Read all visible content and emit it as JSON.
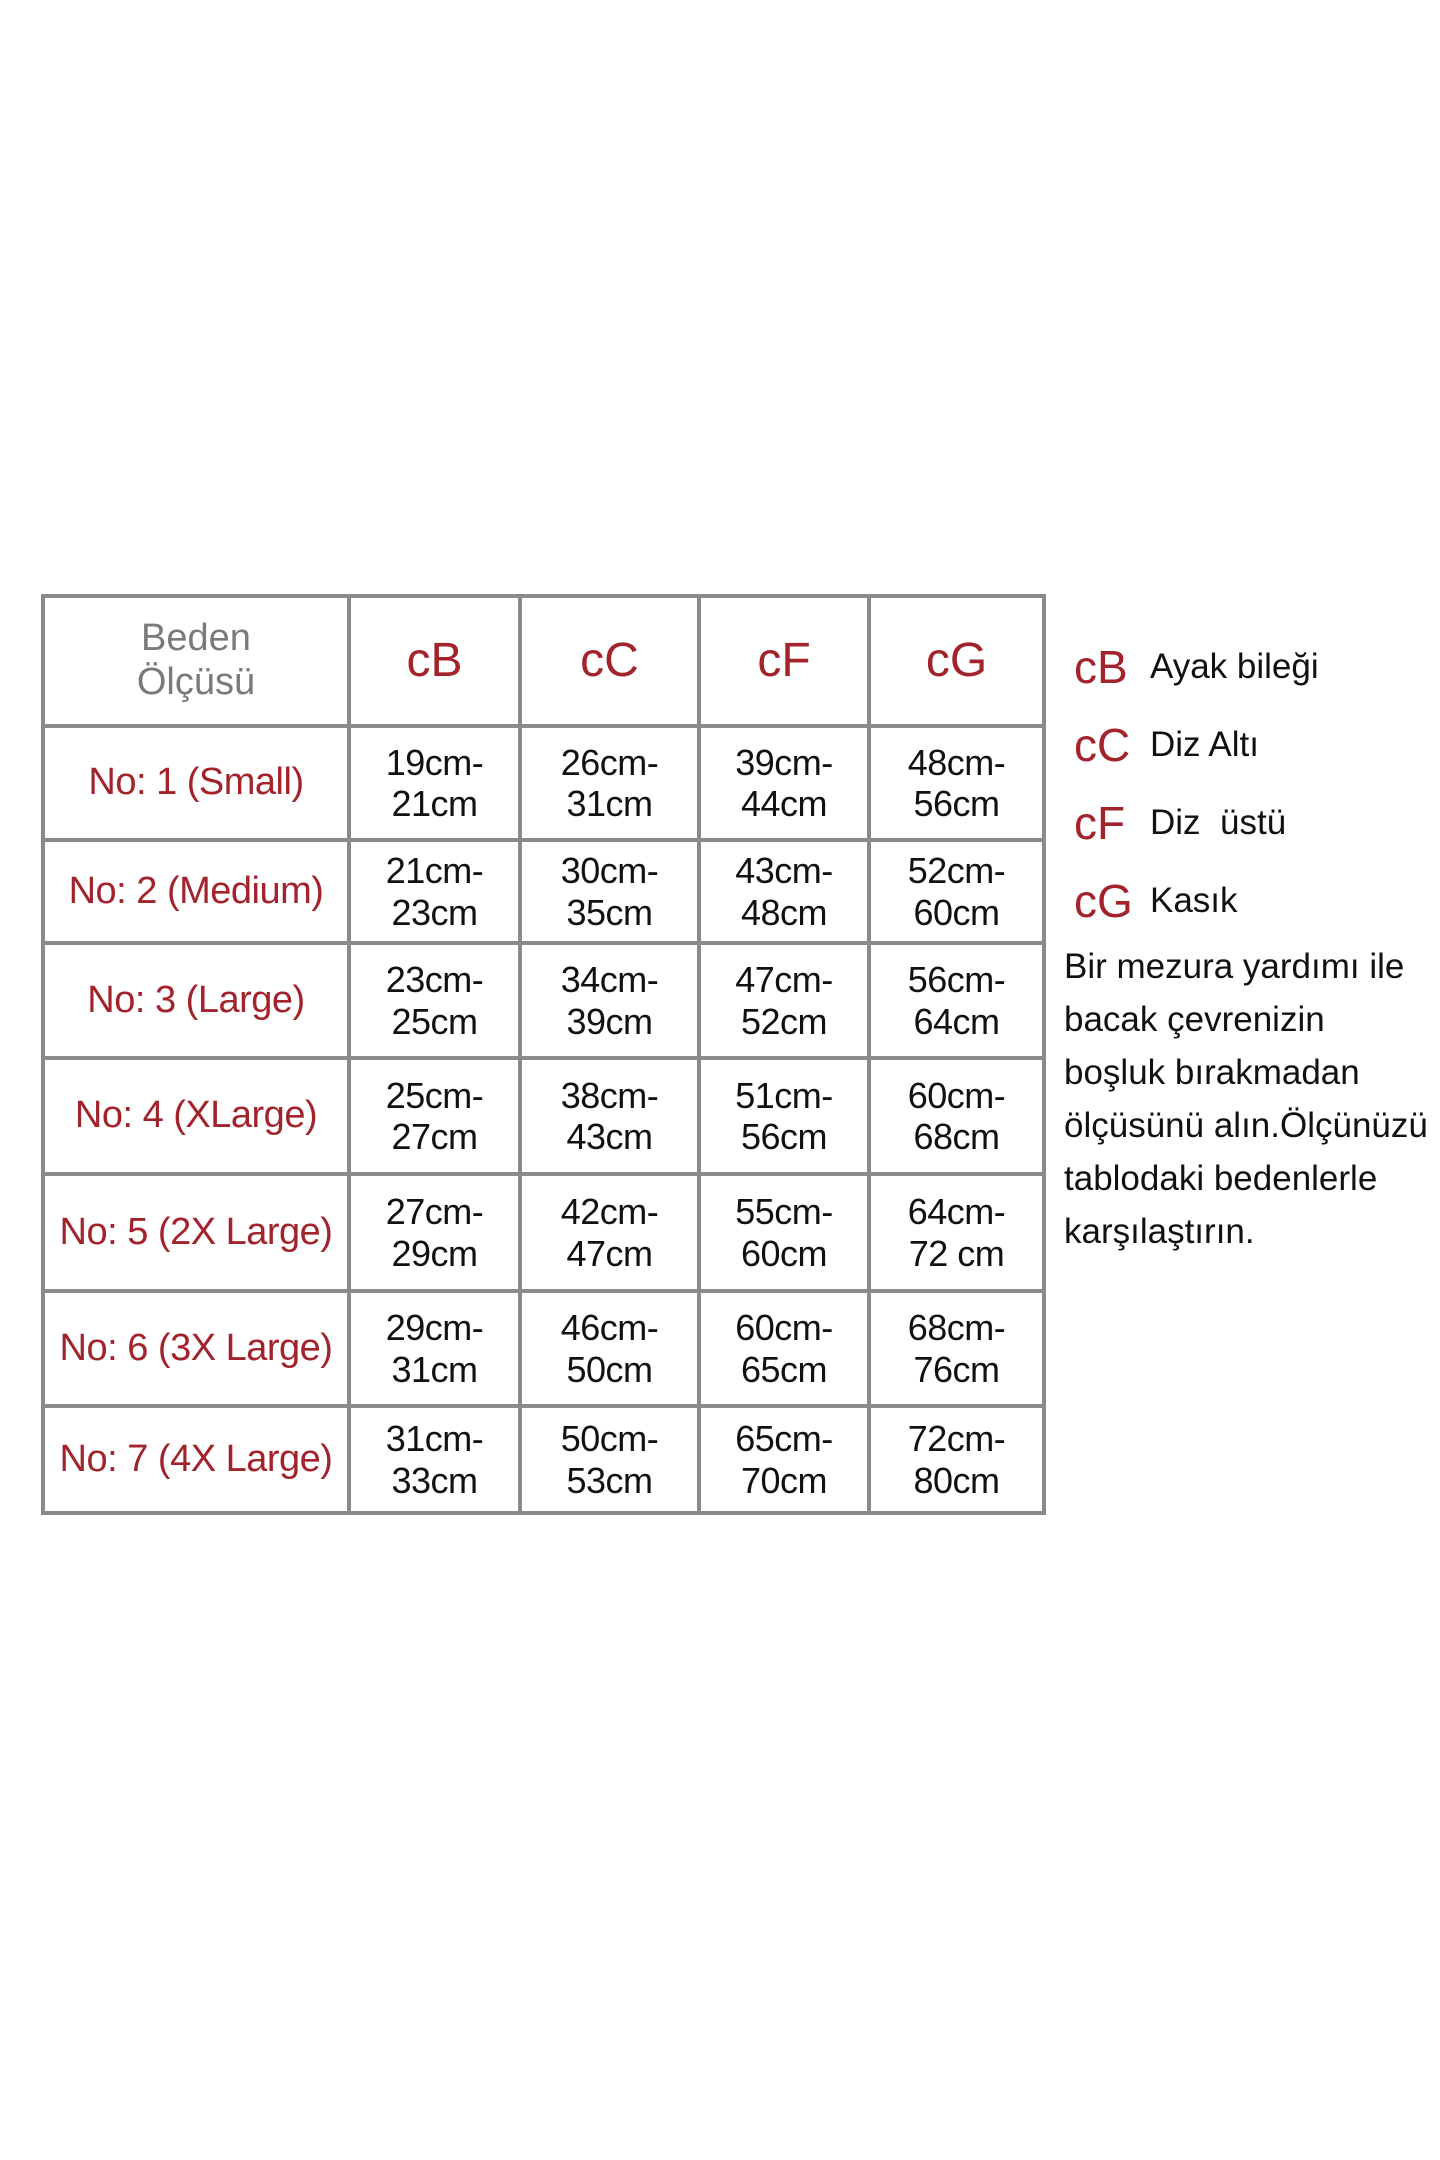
{
  "table": {
    "corner_label": "Beden Ölçüsü",
    "columns": [
      "cB",
      "cC",
      "cF",
      "cG"
    ],
    "rows": [
      {
        "size": "No: 1 (Small)",
        "values": [
          [
            "19cm-",
            "21cm"
          ],
          [
            "26cm-",
            "31cm"
          ],
          [
            "39cm-",
            "44cm"
          ],
          [
            "48cm-",
            "56cm"
          ]
        ]
      },
      {
        "size": "No: 2 (Medium)",
        "values": [
          [
            "21cm-",
            "23cm"
          ],
          [
            "30cm-",
            "35cm"
          ],
          [
            "43cm-",
            "48cm"
          ],
          [
            "52cm-",
            "60cm"
          ]
        ]
      },
      {
        "size": "No: 3 (Large)",
        "values": [
          [
            "23cm-",
            "25cm"
          ],
          [
            "34cm-",
            "39cm"
          ],
          [
            "47cm-",
            "52cm"
          ],
          [
            "56cm-",
            "64cm"
          ]
        ]
      },
      {
        "size": "No: 4 (XLarge)",
        "values": [
          [
            "25cm-",
            "27cm"
          ],
          [
            "38cm-",
            "43cm"
          ],
          [
            "51cm-",
            "56cm"
          ],
          [
            "60cm-",
            "68cm"
          ]
        ]
      },
      {
        "size": "No: 5 (2X Large)",
        "values": [
          [
            "27cm-",
            "29cm"
          ],
          [
            "42cm-",
            "47cm"
          ],
          [
            "55cm-",
            "60cm"
          ],
          [
            "64cm-",
            "72 cm"
          ]
        ]
      },
      {
        "size": "No: 6 (3X Large)",
        "values": [
          [
            "29cm-",
            "31cm"
          ],
          [
            "46cm-",
            "50cm"
          ],
          [
            "60cm-",
            "65cm"
          ],
          [
            "68cm-",
            "76cm"
          ]
        ]
      },
      {
        "size": "No: 7 (4X Large)",
        "values": [
          [
            "31cm-",
            "33cm"
          ],
          [
            "50cm-",
            "53cm"
          ],
          [
            "65cm-",
            "70cm"
          ],
          [
            "72cm-",
            "80cm"
          ]
        ]
      }
    ]
  },
  "legend": [
    {
      "code": "cB",
      "desc": "Ayak bileği"
    },
    {
      "code": "cC",
      "desc": "Diz Altı"
    },
    {
      "code": "cF",
      "desc": "Diz  üstü"
    },
    {
      "code": "cG",
      "desc": "Kasık"
    }
  ],
  "note": "Bir mezura yardımı ile bacak çevrenizin boşluk bırakmadan ölçüsünü alın.Ölçünüzü tablodaki bedenlerle karşılaştırın.",
  "colors": {
    "accent": "#a2232b",
    "header_gray": "#7a7a7a",
    "border": "#8a8a8a"
  }
}
